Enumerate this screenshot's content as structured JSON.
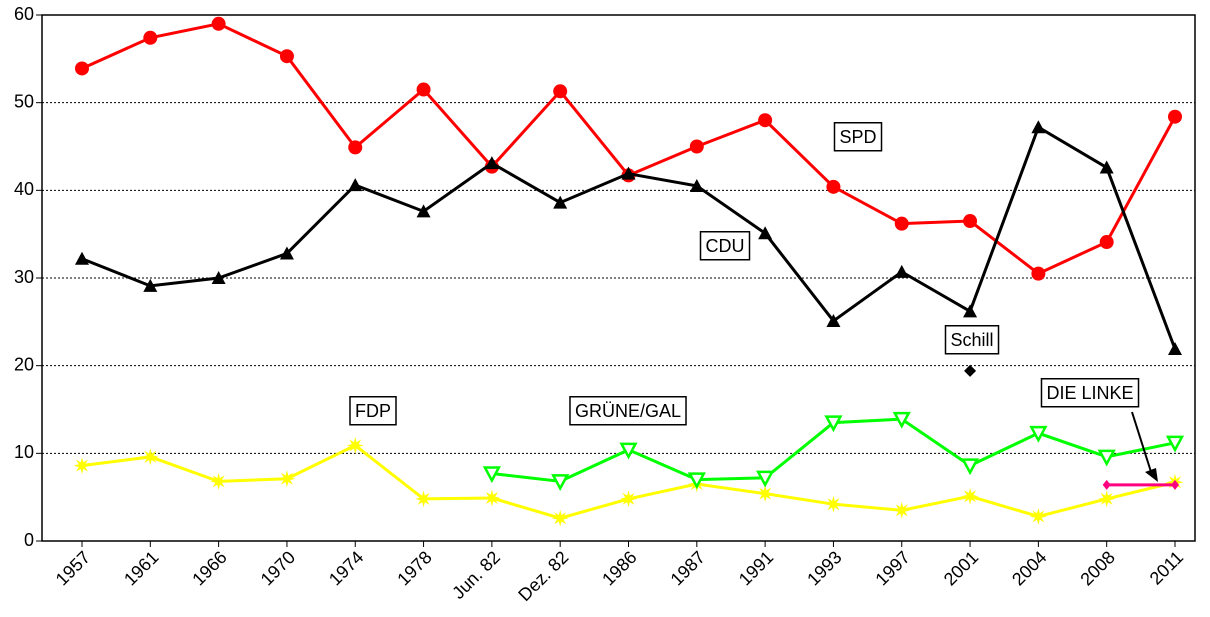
{
  "chart_data": {
    "type": "line",
    "categories": [
      "1957",
      "1961",
      "1966",
      "1970",
      "1974",
      "1978",
      "Jun. 82",
      "Dez. 82",
      "1986",
      "1987",
      "1991",
      "1993",
      "1997",
      "2001",
      "2004",
      "2008",
      "2011"
    ],
    "series": [
      {
        "name": "SPD",
        "color": "#ff0000",
        "marker": "circle",
        "values": [
          53.9,
          57.4,
          59.0,
          55.3,
          44.9,
          51.5,
          42.7,
          51.3,
          41.7,
          45.0,
          48.0,
          40.4,
          36.2,
          36.5,
          30.5,
          34.1,
          48.4
        ]
      },
      {
        "name": "CDU",
        "color": "#000000",
        "marker": "triangle",
        "values": [
          32.2,
          29.1,
          30.0,
          32.8,
          40.6,
          37.6,
          43.1,
          38.6,
          41.9,
          40.5,
          35.1,
          25.1,
          30.7,
          26.2,
          47.2,
          42.6,
          21.9
        ]
      },
      {
        "name": "FDP",
        "color": "#ffff00",
        "marker": "star",
        "values": [
          8.6,
          9.6,
          6.8,
          7.1,
          10.9,
          4.8,
          4.9,
          2.6,
          4.8,
          6.5,
          5.4,
          4.2,
          3.5,
          5.1,
          2.8,
          4.8,
          6.7
        ]
      },
      {
        "name": "GRÜNE/GAL",
        "color": "#00ff00",
        "marker": "triangle-down",
        "values": [
          null,
          null,
          null,
          null,
          null,
          null,
          7.7,
          6.8,
          10.4,
          7.0,
          7.2,
          13.5,
          13.9,
          8.6,
          12.3,
          9.6,
          11.2
        ]
      },
      {
        "name": "Schill",
        "color": "#000000",
        "marker": "diamond",
        "values": [
          null,
          null,
          null,
          null,
          null,
          null,
          null,
          null,
          null,
          null,
          null,
          null,
          null,
          19.4,
          null,
          null,
          null
        ]
      },
      {
        "name": "DIE LINKE",
        "color": "#ff0080",
        "marker": "small-diamond",
        "values": [
          null,
          null,
          null,
          null,
          null,
          null,
          null,
          null,
          null,
          null,
          null,
          null,
          null,
          null,
          null,
          6.4,
          6.4
        ]
      }
    ],
    "ylim": [
      0,
      60
    ],
    "yticks": [
      0,
      10,
      20,
      30,
      40,
      50,
      60
    ],
    "grid": true
  }
}
